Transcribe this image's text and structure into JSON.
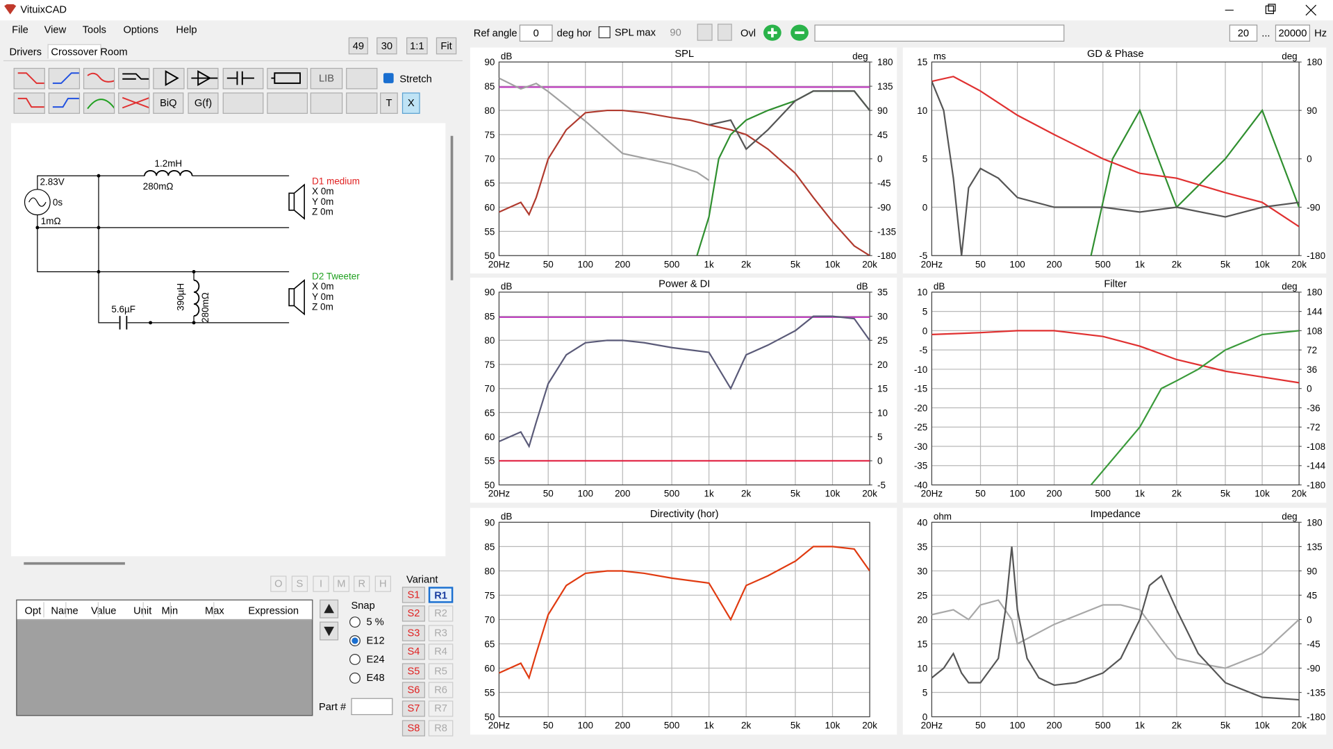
{
  "window": {
    "title": "VituixCAD"
  },
  "menu": [
    "File",
    "View",
    "Tools",
    "Options",
    "Help"
  ],
  "tabs": [
    "Drivers",
    "Crossover",
    "Room"
  ],
  "zoom": [
    "49",
    "30",
    "1:1",
    "Fit"
  ],
  "toolbar": {
    "lib": "LIB",
    "biq": "BiQ",
    "gf": "G(f)",
    "t": "T",
    "x": "X",
    "stretch": "Stretch"
  },
  "schematic": {
    "source": {
      "voltage": "2.83V",
      "delay": "0s",
      "resistance": "1mΩ"
    },
    "l1": {
      "value": "1.2mH",
      "resistance": "280mΩ"
    },
    "c1": {
      "value": "5.6µF"
    },
    "l2": {
      "value": "390µH",
      "resistance": "280mΩ"
    },
    "drivers": [
      {
        "name": "D1 medium",
        "x": "X 0m",
        "y": "Y 0m",
        "z": "Z 0m"
      },
      {
        "name": "D2 Tweeter",
        "x": "X 0m",
        "y": "Y 0m",
        "z": "Z 0m"
      }
    ]
  },
  "flags": [
    "O",
    "S",
    "I",
    "M",
    "R",
    "H"
  ],
  "table": {
    "headers": [
      "Opt",
      "Name",
      "Value",
      "Unit",
      "Min",
      "Max",
      "Expression"
    ]
  },
  "snap": {
    "title": "Snap",
    "options": [
      "5 %",
      "E12",
      "E24",
      "E48"
    ]
  },
  "part": "Part #",
  "variant": {
    "title": "Variant",
    "s": [
      "S1",
      "S2",
      "S3",
      "S4",
      "S5",
      "S6",
      "S7",
      "S8"
    ],
    "r": [
      "R1",
      "R2",
      "R3",
      "R4",
      "R5",
      "R6",
      "R7",
      "R8"
    ]
  },
  "topbar": {
    "ref_angle": "Ref angle",
    "angle": "0",
    "deg_hor": "deg hor",
    "spl_max": "SPL max",
    "spl_value": "90",
    "ovl": "Ovl",
    "f_min": "20",
    "dots": "...",
    "f_max": "20000",
    "hz": "Hz"
  },
  "charts": [
    {
      "type": "line",
      "title": "SPL",
      "y_unit": "dB",
      "y2_unit": "deg",
      "log_x": true,
      "grid": true,
      "xlim": [
        20,
        20000
      ],
      "xticks": [
        {
          "value": 20,
          "label": "20Hz"
        },
        50,
        100,
        200,
        500,
        {
          "value": 1000,
          "label": "1k"
        },
        {
          "value": 2000,
          "label": "2k"
        },
        {
          "value": 5000,
          "label": "5k"
        },
        {
          "value": 10000,
          "label": "10k"
        },
        {
          "value": 20000,
          "label": "20k"
        }
      ],
      "ylim": [
        50,
        90
      ],
      "yticks": [
        50,
        55,
        60,
        65,
        70,
        75,
        80,
        85,
        90
      ],
      "y2lim": [
        -180,
        180
      ],
      "y2ticks": [
        -180,
        -135,
        -90,
        -45,
        0,
        45,
        90,
        135,
        180
      ],
      "series": [
        {
          "color": "#c040c0",
          "x": [
            20,
            20000
          ],
          "values": [
            84.8,
            84.8
          ]
        },
        {
          "color": "#a0a0a0",
          "axis": "y2",
          "x": [
            20,
            30,
            40,
            50,
            100,
            200,
            500,
            800,
            1000
          ],
          "values": [
            150,
            130,
            140,
            125,
            70,
            10,
            -10,
            -25,
            -40
          ]
        },
        {
          "color": "#b03a2e",
          "x": [
            20,
            30,
            35,
            40,
            50,
            70,
            100,
            150,
            200,
            300,
            500,
            700,
            1000,
            1500,
            2000,
            3000,
            5000,
            7000,
            10000,
            15000,
            20000
          ],
          "values": [
            59,
            61,
            58.5,
            62,
            70,
            76,
            79.5,
            80,
            80,
            79.5,
            78.5,
            78,
            77,
            76,
            75,
            72,
            67,
            62,
            57,
            52,
            50
          ]
        },
        {
          "color": "#2f8f2f",
          "x": [
            800,
            1000,
            1200,
            1500,
            2000,
            3000,
            5000,
            7000,
            10000,
            15000,
            20000
          ],
          "values": [
            50,
            58,
            70,
            75,
            78,
            80,
            82,
            84,
            84,
            84,
            80
          ]
        },
        {
          "color": "#555555",
          "x": [
            1000,
            1500,
            2000,
            3000,
            5000,
            7000,
            10000,
            15000,
            20000
          ],
          "values": [
            77,
            78,
            72,
            76,
            82,
            84,
            84,
            84,
            80
          ]
        }
      ]
    },
    {
      "type": "line",
      "title": "GD & Phase",
      "y_unit": "ms",
      "y2_unit": "deg",
      "log_x": true,
      "grid": true,
      "xlim": [
        20,
        20000
      ],
      "xticks": [
        {
          "value": 20,
          "label": "20Hz"
        },
        50,
        100,
        200,
        500,
        {
          "value": 1000,
          "label": "1k"
        },
        {
          "value": 2000,
          "label": "2k"
        },
        {
          "value": 5000,
          "label": "5k"
        },
        {
          "value": 10000,
          "label": "10k"
        },
        {
          "value": 20000,
          "label": "20k"
        }
      ],
      "ylim": [
        -5,
        15
      ],
      "yticks": [
        -5,
        0,
        5,
        10,
        15
      ],
      "y2lim": [
        -180,
        180
      ],
      "y2ticks": [
        -180,
        -90,
        0,
        90,
        180
      ],
      "series": [
        {
          "color": "#2f8f2f",
          "axis": "y2",
          "x": [
            400,
            600,
            1000,
            2000,
            5000,
            10000,
            20000
          ],
          "values": [
            -180,
            0,
            90,
            -90,
            0,
            90,
            -90
          ]
        },
        {
          "color": "#e03030",
          "x": [
            20,
            30,
            50,
            100,
            200,
            500,
            1000,
            2000,
            5000,
            10000,
            20000
          ],
          "values": [
            13,
            13.5,
            12,
            9.5,
            7.5,
            5,
            3.5,
            3,
            1.5,
            0.5,
            -2
          ]
        },
        {
          "color": "#555555",
          "x": [
            20,
            25,
            30,
            35,
            40,
            50,
            70,
            100,
            200,
            500,
            1000,
            2000,
            5000,
            10000,
            20000
          ],
          "values": [
            13,
            10,
            3,
            -5,
            2,
            4,
            3,
            1,
            0,
            0,
            -0.5,
            0,
            -1,
            0,
            0.5
          ]
        }
      ]
    },
    {
      "type": "line",
      "title": "Power & DI",
      "y_unit": "dB",
      "y2_unit": "dB",
      "log_x": true,
      "grid": true,
      "xlim": [
        20,
        20000
      ],
      "xticks": [
        {
          "value": 20,
          "label": "20Hz"
        },
        50,
        100,
        200,
        500,
        {
          "value": 1000,
          "label": "1k"
        },
        {
          "value": 2000,
          "label": "2k"
        },
        {
          "value": 5000,
          "label": "5k"
        },
        {
          "value": 10000,
          "label": "10k"
        },
        {
          "value": 20000,
          "label": "20k"
        }
      ],
      "ylim": [
        50,
        90
      ],
      "yticks": [
        50,
        55,
        60,
        65,
        70,
        75,
        80,
        85,
        90
      ],
      "y2lim": [
        -5,
        35
      ],
      "y2ticks": [
        -5,
        0,
        5,
        10,
        15,
        20,
        25,
        30,
        35
      ],
      "series": [
        {
          "color": "#c040c0",
          "x": [
            20,
            20000
          ],
          "values": [
            84.8,
            84.8
          ]
        },
        {
          "color": "#e02040",
          "axis": "y2",
          "x": [
            20,
            20000
          ],
          "values": [
            0,
            0
          ]
        },
        {
          "color": "#5a5a78",
          "x": [
            20,
            30,
            35,
            40,
            50,
            70,
            100,
            150,
            200,
            300,
            500,
            1000,
            1500,
            2000,
            3000,
            5000,
            7000,
            10000,
            15000,
            20000
          ],
          "values": [
            59,
            61,
            58,
            63,
            71,
            77,
            79.5,
            80,
            80,
            79.5,
            78.5,
            77.5,
            70,
            77,
            79,
            82,
            85,
            85,
            84.5,
            80
          ]
        }
      ]
    },
    {
      "type": "line",
      "title": "Filter",
      "y_unit": "dB",
      "y2_unit": "deg",
      "log_x": true,
      "grid": true,
      "xlim": [
        20,
        20000
      ],
      "xticks": [
        {
          "value": 20,
          "label": "20Hz"
        },
        50,
        100,
        200,
        500,
        {
          "value": 1000,
          "label": "1k"
        },
        {
          "value": 2000,
          "label": "2k"
        },
        {
          "value": 5000,
          "label": "5k"
        },
        {
          "value": 10000,
          "label": "10k"
        },
        {
          "value": 20000,
          "label": "20k"
        }
      ],
      "ylim": [
        -40,
        10
      ],
      "yticks": [
        -40,
        -35,
        -30,
        -25,
        -20,
        -15,
        -10,
        -5,
        0,
        5,
        10
      ],
      "y2lim": [
        -180,
        180
      ],
      "y2ticks": [
        -180,
        -144,
        -108,
        -72,
        -36,
        0,
        36,
        72,
        108,
        144,
        180
      ],
      "series": [
        {
          "color": "#e03030",
          "x": [
            20,
            50,
            100,
            200,
            500,
            1000,
            2000,
            5000,
            10000,
            20000
          ],
          "values": [
            -1,
            -0.5,
            0,
            0,
            -1.5,
            -4,
            -7.5,
            -10.5,
            -12,
            -13.5
          ]
        },
        {
          "color": "#3a9a3a",
          "x": [
            400,
            1000,
            1500,
            2000,
            3000,
            5000,
            10000,
            20000
          ],
          "values": [
            -40,
            -25,
            -15,
            -13,
            -10,
            -5,
            -1,
            0
          ]
        }
      ]
    },
    {
      "type": "line",
      "title": "Directivity (hor)",
      "y_unit": "dB",
      "log_x": true,
      "grid": true,
      "xlim": [
        20,
        20000
      ],
      "xticks": [
        {
          "value": 20,
          "label": "20Hz"
        },
        50,
        100,
        200,
        500,
        {
          "value": 1000,
          "label": "1k"
        },
        {
          "value": 2000,
          "label": "2k"
        },
        {
          "value": 5000,
          "label": "5k"
        },
        {
          "value": 10000,
          "label": "10k"
        },
        {
          "value": 20000,
          "label": "20k"
        }
      ],
      "ylim": [
        50,
        90
      ],
      "yticks": [
        50,
        55,
        60,
        65,
        70,
        75,
        80,
        85,
        90
      ],
      "series": [
        {
          "color": "#e03a10",
          "x": [
            20,
            30,
            35,
            40,
            50,
            70,
            100,
            150,
            200,
            300,
            500,
            1000,
            1500,
            2000,
            3000,
            5000,
            7000,
            10000,
            15000,
            20000
          ],
          "values": [
            59,
            61,
            58,
            63,
            71,
            77,
            79.5,
            80,
            80,
            79.5,
            78.5,
            77.5,
            70,
            77,
            79,
            82,
            85,
            85,
            84.5,
            80
          ]
        }
      ]
    },
    {
      "type": "line",
      "title": "Impedance",
      "y_unit": "ohm",
      "y2_unit": "deg",
      "log_x": true,
      "grid": true,
      "xlim": [
        20,
        20000
      ],
      "xticks": [
        {
          "value": 20,
          "label": "20Hz"
        },
        50,
        100,
        200,
        500,
        {
          "value": 1000,
          "label": "1k"
        },
        {
          "value": 2000,
          "label": "2k"
        },
        {
          "value": 5000,
          "label": "5k"
        },
        {
          "value": 10000,
          "label": "10k"
        },
        {
          "value": 20000,
          "label": "20k"
        }
      ],
      "ylim": [
        0,
        40
      ],
      "yticks": [
        0,
        5,
        10,
        15,
        20,
        25,
        30,
        35,
        40
      ],
      "y2lim": [
        -180,
        180
      ],
      "y2ticks": [
        -180,
        -135,
        -90,
        -45,
        0,
        45,
        90,
        135,
        180
      ],
      "series": [
        {
          "color": "#a8a8a8",
          "axis": "y2",
          "x": [
            20,
            30,
            40,
            50,
            70,
            90,
            100,
            200,
            500,
            700,
            1000,
            1500,
            2000,
            3000,
            5000,
            10000,
            20000
          ],
          "values": [
            9,
            18,
            0,
            27,
            36,
            0,
            -45,
            -9,
            27,
            27,
            18,
            -36,
            -72,
            -81,
            -90,
            -63,
            0
          ]
        },
        {
          "color": "#555555",
          "x": [
            20,
            25,
            30,
            35,
            40,
            50,
            70,
            80,
            90,
            100,
            120,
            150,
            200,
            300,
            500,
            700,
            1000,
            1200,
            1500,
            2000,
            3000,
            5000,
            10000,
            20000
          ],
          "values": [
            8,
            10,
            13,
            9,
            7,
            7,
            12,
            22,
            35,
            22,
            12,
            8,
            6.5,
            7,
            9,
            12,
            20,
            27,
            29,
            22,
            13,
            7,
            4,
            3.5
          ]
        }
      ]
    }
  ]
}
